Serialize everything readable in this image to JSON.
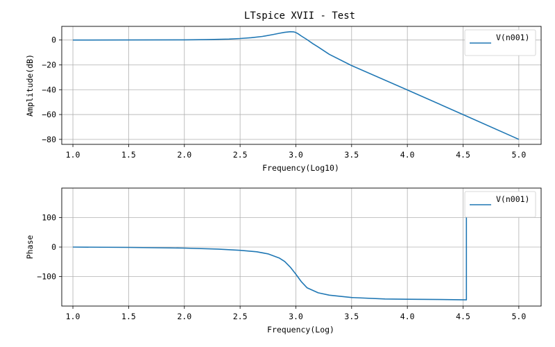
{
  "figure": {
    "title": "LTspice XVII - Test"
  },
  "chart_data": [
    {
      "type": "line",
      "xlabel": "Frequency(Log10)",
      "ylabel": "Amplitude(dB)",
      "xlim": [
        0.9,
        5.2
      ],
      "ylim": [
        -84,
        11
      ],
      "xticks": [
        1.0,
        1.5,
        2.0,
        2.5,
        3.0,
        3.5,
        4.0,
        4.5,
        5.0
      ],
      "yticks": [
        0,
        -20,
        -40,
        -60,
        -80
      ],
      "xtick_labels": [
        "1.0",
        "1.5",
        "2.0",
        "2.5",
        "3.0",
        "3.5",
        "4.0",
        "4.5",
        "5.0"
      ],
      "ytick_labels": [
        "0",
        "−20",
        "−40",
        "−60",
        "−80"
      ],
      "grid": true,
      "legend_position": "top-right",
      "series": [
        {
          "name": "V(n001)",
          "color": "#1f77b4",
          "x": [
            1.0,
            1.5,
            2.0,
            2.2,
            2.4,
            2.5,
            2.6,
            2.7,
            2.8,
            2.85,
            2.9,
            2.95,
            2.98,
            3.0,
            3.02,
            3.05,
            3.1,
            3.15,
            3.2,
            3.3,
            3.5,
            4.0,
            4.5,
            5.0
          ],
          "y": [
            0,
            0.02,
            0.15,
            0.35,
            0.8,
            1.2,
            1.9,
            2.9,
            4.5,
            5.4,
            6.2,
            6.7,
            6.6,
            6.0,
            5.0,
            3.2,
            0.4,
            -2.8,
            -5.6,
            -11.5,
            -20.6,
            -40.2,
            -60.0,
            -80.0
          ]
        }
      ]
    },
    {
      "type": "line",
      "xlabel": "Frequency(Log)",
      "ylabel": "Phase",
      "xlim": [
        0.9,
        5.2
      ],
      "ylim": [
        -200,
        200
      ],
      "xticks": [
        1.0,
        1.5,
        2.0,
        2.5,
        3.0,
        3.5,
        4.0,
        4.5,
        5.0
      ],
      "yticks": [
        100,
        0,
        -100
      ],
      "xtick_labels": [
        "1.0",
        "1.5",
        "2.0",
        "2.5",
        "3.0",
        "3.5",
        "4.0",
        "4.5",
        "5.0"
      ],
      "ytick_labels": [
        "100",
        "0",
        "−100"
      ],
      "grid": true,
      "legend_position": "top-right",
      "series": [
        {
          "name": "V(n001)",
          "color": "#1f77b4",
          "x": [
            1.0,
            1.5,
            2.0,
            2.3,
            2.5,
            2.65,
            2.75,
            2.85,
            2.9,
            2.95,
            3.0,
            3.05,
            3.1,
            3.2,
            3.3,
            3.5,
            3.8,
            4.0,
            4.3,
            4.53,
            4.53,
            4.53
          ],
          "y": [
            0,
            -1.1,
            -3.6,
            -6.8,
            -11,
            -16,
            -23,
            -37,
            -49,
            -68,
            -92,
            -118,
            -138,
            -155,
            -163,
            -171,
            -176,
            -177,
            -178,
            -179,
            -179,
            179
          ]
        }
      ]
    }
  ]
}
